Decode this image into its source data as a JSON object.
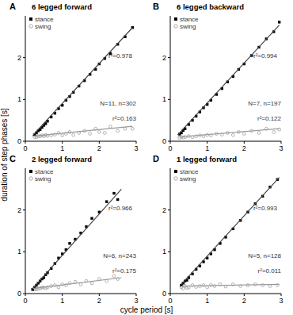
{
  "chart_data": [
    {
      "type": "scatter",
      "panel_label": "A",
      "title": "6 legged forward",
      "y_label": "duration of step phases [s]",
      "xlim": [
        0,
        3
      ],
      "ylim": [
        0,
        3
      ],
      "xticks": [
        0,
        1,
        2,
        3
      ],
      "yticks": [
        0,
        1,
        2
      ],
      "legend": "top-left",
      "annotations": [
        "r²=0.978",
        "r²=0.163",
        "N=11, n=302"
      ],
      "series": [
        {
          "name": "stance",
          "type": "scatter",
          "marker": "square",
          "color": "#000000",
          "x": [
            0.25,
            0.3,
            0.35,
            0.4,
            0.45,
            0.5,
            0.55,
            0.6,
            0.7,
            0.8,
            0.9,
            1.0,
            1.1,
            1.2,
            1.3,
            1.45,
            1.6,
            1.75,
            1.9,
            2.0,
            2.15,
            2.3,
            2.5,
            2.7,
            2.9
          ],
          "values": [
            0.15,
            0.2,
            0.25,
            0.28,
            0.33,
            0.38,
            0.42,
            0.48,
            0.58,
            0.67,
            0.78,
            0.86,
            0.98,
            1.07,
            1.17,
            1.32,
            1.45,
            1.6,
            1.72,
            1.85,
            1.98,
            2.1,
            2.32,
            2.5,
            2.72
          ]
        },
        {
          "name": "swing",
          "type": "scatter",
          "marker": "open-circle",
          "color": "#a0a0a0",
          "x": [
            0.25,
            0.3,
            0.35,
            0.4,
            0.45,
            0.5,
            0.55,
            0.6,
            0.7,
            0.8,
            0.9,
            1.0,
            1.1,
            1.2,
            1.3,
            1.45,
            1.6,
            1.75,
            1.9,
            2.0,
            2.15,
            2.3,
            2.5,
            2.7,
            2.9
          ],
          "values": [
            0.1,
            0.1,
            0.12,
            0.12,
            0.14,
            0.12,
            0.15,
            0.13,
            0.14,
            0.16,
            0.2,
            0.14,
            0.18,
            0.22,
            0.15,
            0.2,
            0.25,
            0.18,
            0.3,
            0.22,
            0.2,
            0.35,
            0.25,
            0.3,
            0.3
          ]
        },
        {
          "type": "line",
          "line_style": "solid",
          "color": "#444444",
          "x": [
            0.2,
            2.9
          ],
          "values": [
            0.14,
            2.72
          ]
        },
        {
          "type": "line",
          "line_style": "solid",
          "color": "#999999",
          "x": [
            0.2,
            2.9
          ],
          "values": [
            0.12,
            0.36
          ]
        }
      ]
    },
    {
      "type": "scatter",
      "panel_label": "B",
      "title": "6 legged backward",
      "xlim": [
        0,
        3
      ],
      "ylim": [
        0,
        3
      ],
      "xticks": [
        0,
        1,
        2,
        3
      ],
      "yticks": [
        0,
        1,
        2
      ],
      "legend": "top-left",
      "annotations": [
        "r²=0.994",
        "r²=0.122",
        "N=7, n=197"
      ],
      "series": [
        {
          "name": "stance",
          "type": "scatter",
          "marker": "square",
          "color": "#000000",
          "x": [
            0.25,
            0.3,
            0.35,
            0.4,
            0.5,
            0.6,
            0.7,
            0.8,
            0.9,
            1.0,
            1.1,
            1.25,
            1.4,
            1.55,
            1.7,
            1.85,
            2.0,
            2.2,
            2.4,
            2.6,
            2.8,
            2.95
          ],
          "values": [
            0.17,
            0.2,
            0.26,
            0.3,
            0.4,
            0.5,
            0.6,
            0.7,
            0.8,
            0.88,
            0.98,
            1.12,
            1.26,
            1.42,
            1.55,
            1.72,
            1.85,
            2.05,
            2.25,
            2.45,
            2.62,
            2.85
          ]
        },
        {
          "name": "swing",
          "type": "scatter",
          "marker": "open-circle",
          "color": "#a0a0a0",
          "x": [
            0.25,
            0.3,
            0.35,
            0.4,
            0.5,
            0.6,
            0.7,
            0.8,
            0.9,
            1.0,
            1.1,
            1.25,
            1.4,
            1.55,
            1.7,
            1.85,
            2.0,
            2.2,
            2.4,
            2.6,
            2.8,
            2.95
          ],
          "values": [
            0.08,
            0.1,
            0.09,
            0.1,
            0.12,
            0.1,
            0.12,
            0.14,
            0.12,
            0.15,
            0.14,
            0.18,
            0.16,
            0.2,
            0.15,
            0.22,
            0.18,
            0.25,
            0.2,
            0.3,
            0.22,
            0.28
          ]
        },
        {
          "type": "line",
          "line_style": "solid",
          "color": "#444444",
          "x": [
            0.2,
            2.95
          ],
          "values": [
            0.15,
            2.78
          ]
        },
        {
          "type": "line",
          "line_style": "solid",
          "color": "#999999",
          "x": [
            0.2,
            2.95
          ],
          "values": [
            0.1,
            0.3
          ]
        }
      ]
    },
    {
      "type": "scatter",
      "panel_label": "C",
      "title": "2 legged forward",
      "x_label": "cycle period [s]",
      "xlim": [
        0,
        3
      ],
      "ylim": [
        0,
        3
      ],
      "xticks": [
        0,
        1,
        2,
        3
      ],
      "yticks": [
        0,
        1,
        2
      ],
      "legend": "top-left",
      "annotations": [
        "r²=0.966",
        "r²=0.175",
        "N=6, n=243"
      ],
      "series": [
        {
          "name": "stance",
          "type": "scatter",
          "marker": "square",
          "color": "#000000",
          "x": [
            0.2,
            0.25,
            0.3,
            0.35,
            0.4,
            0.45,
            0.5,
            0.55,
            0.6,
            0.7,
            0.8,
            0.9,
            1.0,
            1.1,
            1.2,
            1.35,
            1.5,
            1.65,
            1.8,
            2.0,
            2.2,
            2.4,
            2.5
          ],
          "values": [
            0.1,
            0.15,
            0.2,
            0.25,
            0.3,
            0.35,
            0.38,
            0.45,
            0.5,
            0.6,
            0.72,
            0.85,
            0.95,
            1.05,
            1.2,
            1.3,
            1.45,
            1.6,
            1.8,
            1.95,
            2.2,
            2.4,
            2.25
          ]
        },
        {
          "name": "swing",
          "type": "scatter",
          "marker": "open-circle",
          "color": "#a0a0a0",
          "x": [
            0.2,
            0.25,
            0.3,
            0.35,
            0.4,
            0.45,
            0.5,
            0.55,
            0.6,
            0.7,
            0.8,
            0.9,
            1.0,
            1.1,
            1.2,
            1.35,
            1.5,
            1.65,
            1.8,
            2.0,
            2.2,
            2.4,
            2.5
          ],
          "values": [
            0.1,
            0.1,
            0.1,
            0.12,
            0.12,
            0.15,
            0.14,
            0.13,
            0.15,
            0.18,
            0.2,
            0.15,
            0.22,
            0.2,
            0.25,
            0.28,
            0.22,
            0.3,
            0.25,
            0.35,
            0.3,
            0.42,
            0.35
          ]
        },
        {
          "type": "line",
          "line_style": "solid",
          "color": "#444444",
          "x": [
            0.2,
            2.6
          ],
          "values": [
            0.12,
            2.5
          ]
        },
        {
          "type": "line",
          "line_style": "solid",
          "color": "#999999",
          "x": [
            0.2,
            2.6
          ],
          "values": [
            0.12,
            0.38
          ]
        }
      ]
    },
    {
      "type": "scatter",
      "panel_label": "D",
      "title": "1 legged forward",
      "xlim": [
        0,
        3
      ],
      "ylim": [
        0,
        3
      ],
      "xticks": [
        0,
        1,
        2,
        3
      ],
      "yticks": [
        0,
        1,
        2
      ],
      "legend": "top-left",
      "annotations": [
        "r²=0.993",
        "r²=0.011",
        "N=5, n=128"
      ],
      "series": [
        {
          "name": "stance",
          "type": "scatter",
          "marker": "square",
          "color": "#000000",
          "x": [
            0.3,
            0.35,
            0.4,
            0.45,
            0.5,
            0.6,
            0.7,
            0.8,
            0.9,
            1.0,
            1.1,
            1.2,
            1.35,
            1.5,
            1.7,
            1.9,
            2.1,
            2.3,
            2.5,
            2.7,
            2.9
          ],
          "values": [
            0.2,
            0.25,
            0.3,
            0.32,
            0.38,
            0.47,
            0.58,
            0.66,
            0.76,
            0.85,
            0.95,
            1.05,
            1.2,
            1.35,
            1.55,
            1.75,
            1.95,
            2.15,
            2.33,
            2.55,
            2.73
          ]
        },
        {
          "name": "swing",
          "type": "scatter",
          "marker": "open-circle",
          "color": "#a0a0a0",
          "x": [
            0.3,
            0.35,
            0.4,
            0.45,
            0.5,
            0.6,
            0.7,
            0.8,
            0.9,
            1.0,
            1.1,
            1.2,
            1.35,
            1.5,
            1.7,
            1.9,
            2.1,
            2.3,
            2.5,
            2.7,
            2.9
          ],
          "values": [
            0.15,
            0.12,
            0.18,
            0.14,
            0.15,
            0.2,
            0.16,
            0.18,
            0.2,
            0.15,
            0.2,
            0.18,
            0.22,
            0.17,
            0.22,
            0.18,
            0.2,
            0.22,
            0.2,
            0.18,
            0.2
          ]
        },
        {
          "type": "line",
          "line_style": "solid",
          "color": "#444444",
          "x": [
            0.3,
            2.95
          ],
          "values": [
            0.22,
            2.78
          ]
        },
        {
          "type": "line",
          "line_style": "solid",
          "color": "#999999",
          "x": [
            0.3,
            2.95
          ],
          "values": [
            0.18,
            0.22
          ]
        }
      ]
    }
  ]
}
